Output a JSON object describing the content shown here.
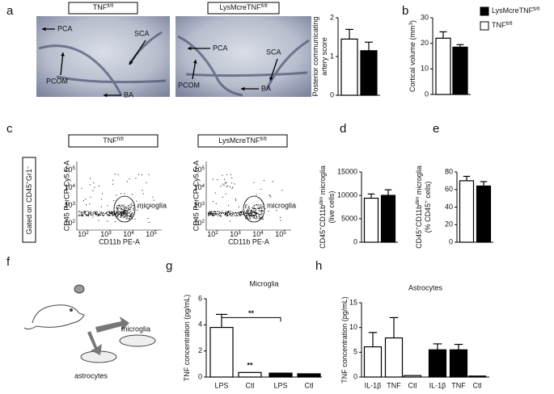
{
  "panel_letters": [
    "a",
    "b",
    "c",
    "d",
    "e",
    "f",
    "g",
    "h"
  ],
  "legend": [
    {
      "name": {
        "text": "LysMcreTNF",
        "sup": "fl/fl"
      },
      "color": "#000000"
    },
    {
      "name": {
        "text": "TNF",
        "sup": "fl/fl"
      },
      "color": "#ffffff"
    }
  ],
  "photos": [
    {
      "header": {
        "text": "TNF",
        "sup": "fl/fl"
      },
      "labels": [
        "PCA",
        "SCA",
        "PCOM",
        "BA"
      ]
    },
    {
      "header": {
        "text": "LysMcreTNF",
        "sup": "fl/fl"
      },
      "labels": [
        "PCA",
        "SCA",
        "PCOM",
        "BA"
      ]
    }
  ],
  "gating": [
    {
      "text": "Gated on CD45",
      "sup": "+"
    },
    {
      "text": "Gr1",
      "sup": "–"
    }
  ],
  "flow_plots": [
    {
      "header": {
        "text": "TNF",
        "sup": "fl/fl"
      },
      "gate_label": "microglia",
      "xlabel": "CD11b PE-A",
      "ylabel": "CD45 PerCP-Cy5.5-A"
    },
    {
      "header": {
        "text": "LysMcreTNF",
        "sup": "fl/fl"
      },
      "gate_label": "microglia",
      "xlabel": "CD11b PE-A",
      "ylabel": "CD45 PerCP-Cy5.5-A"
    }
  ],
  "flow_ticks": [
    {
      "text": "10",
      "sup": "2"
    },
    {
      "text": "10",
      "sup": "3"
    },
    {
      "text": "10",
      "sup": "4"
    },
    {
      "text": "10",
      "sup": "5"
    }
  ],
  "schematic": {
    "microglia": "microglia",
    "astrocytes": "astrocytes"
  },
  "chart_data": [
    {
      "type": "bar",
      "ylabel": [
        [
          {
            "text": "Posterior communicating"
          }
        ],
        [
          {
            "text": "artery score"
          }
        ]
      ],
      "categories": [
        null,
        null
      ],
      "values": [
        1.45,
        1.15
      ],
      "errors": [
        0.25,
        0.22
      ],
      "colors": [
        "#ffffff",
        "#000000"
      ],
      "ylim": [
        0,
        2
      ],
      "yticks": [
        0,
        1,
        2
      ]
    },
    {
      "type": "bar",
      "ylabel": [
        [
          {
            "text": "Cortical volume (mm",
            "sup": "3"
          },
          {
            "text": ")"
          }
        ]
      ],
      "categories": [
        null,
        null
      ],
      "values": [
        22,
        18.5
      ],
      "errors": [
        2.5,
        1
      ],
      "colors": [
        "#ffffff",
        "#000000"
      ],
      "ylim": [
        0,
        30
      ],
      "yticks": [
        0,
        10,
        20,
        30
      ]
    },
    {
      "type": "bar",
      "ylabel": [
        [
          {
            "text": "CD45",
            "sup": "+"
          },
          {
            "text": "CD11b",
            "sup": "dim"
          },
          {
            "text": " microglia"
          }
        ],
        [
          {
            "text": "(live cells)"
          }
        ]
      ],
      "categories": [
        null,
        null
      ],
      "values": [
        9400,
        10000
      ],
      "errors": [
        900,
        1200
      ],
      "colors": [
        "#ffffff",
        "#000000"
      ],
      "ylim": [
        0,
        15000
      ],
      "yticks": [
        0,
        5000,
        10000,
        15000
      ]
    },
    {
      "type": "bar",
      "ylabel": [
        [
          {
            "text": "CD45",
            "sup": "+"
          },
          {
            "text": "CD11b",
            "sup": "dim"
          },
          {
            "text": " microglia"
          }
        ],
        [
          {
            "text": "(% CD45",
            "sup": "+"
          },
          {
            "text": " cells)"
          }
        ]
      ],
      "categories": [
        null,
        null
      ],
      "values": [
        70,
        64
      ],
      "errors": [
        5,
        5
      ],
      "colors": [
        "#ffffff",
        "#000000"
      ],
      "ylim": [
        0,
        80
      ],
      "yticks": [
        0,
        20,
        40,
        60,
        80
      ]
    },
    {
      "type": "bar",
      "title": "Microglia",
      "ylabel": [
        [
          {
            "text": "TNF concentration (pg/mL)"
          }
        ]
      ],
      "categories": [
        "LPS",
        "Ctl",
        "LPS",
        "Ctl"
      ],
      "values": [
        3.8,
        0.35,
        0.3,
        0.25
      ],
      "errors": [
        1.0,
        null,
        null,
        null
      ],
      "colors": [
        "#ffffff",
        "#ffffff",
        "#000000",
        "#000000"
      ],
      "ylim": [
        0,
        6
      ],
      "yticks": [
        0,
        2,
        4,
        6
      ],
      "annotations": [
        "**",
        "**"
      ]
    },
    {
      "type": "bar",
      "title": "Astrocytes",
      "ylabel": [
        [
          {
            "text": "TNF concentration (pg/mL)"
          }
        ]
      ],
      "categories": [
        "IL-1β",
        "TNF",
        "Ctl",
        "IL-1β",
        "TNF",
        "Ctl"
      ],
      "values": [
        6.1,
        7.9,
        0.3,
        5.5,
        5.5,
        0.2
      ],
      "errors": [
        2.9,
        4.1,
        null,
        1.2,
        1.1,
        null
      ],
      "colors": [
        "#ffffff",
        "#ffffff",
        "#ffffff",
        "#000000",
        "#000000",
        "#000000"
      ],
      "ylim": [
        0,
        15
      ],
      "yticks": [
        0,
        5,
        10,
        15
      ]
    }
  ]
}
